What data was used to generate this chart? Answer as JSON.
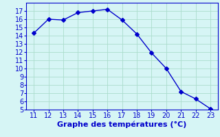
{
  "x": [
    11,
    12,
    13,
    14,
    15,
    16,
    17,
    18,
    19,
    20,
    21,
    22,
    23
  ],
  "y": [
    14.3,
    16.0,
    15.9,
    16.8,
    17.0,
    17.2,
    15.9,
    14.2,
    11.9,
    10.0,
    7.2,
    6.3,
    5.1
  ],
  "line_color": "#0000cc",
  "marker": "D",
  "marker_size": 3,
  "background_color": "#d6f5f5",
  "grid_color": "#aaddcc",
  "xlabel": "Graphe des températures (°C)",
  "xlabel_color": "#0000cc",
  "xlabel_fontsize": 8,
  "tick_color": "#0000cc",
  "tick_fontsize": 7,
  "xlim": [
    10.5,
    23.5
  ],
  "ylim": [
    5,
    18
  ],
  "yticks": [
    5,
    6,
    7,
    8,
    9,
    10,
    11,
    12,
    13,
    14,
    15,
    16,
    17
  ],
  "xticks": [
    11,
    12,
    13,
    14,
    15,
    16,
    17,
    18,
    19,
    20,
    21,
    22,
    23
  ],
  "spine_color": "#0000cc",
  "line_width": 1.0
}
